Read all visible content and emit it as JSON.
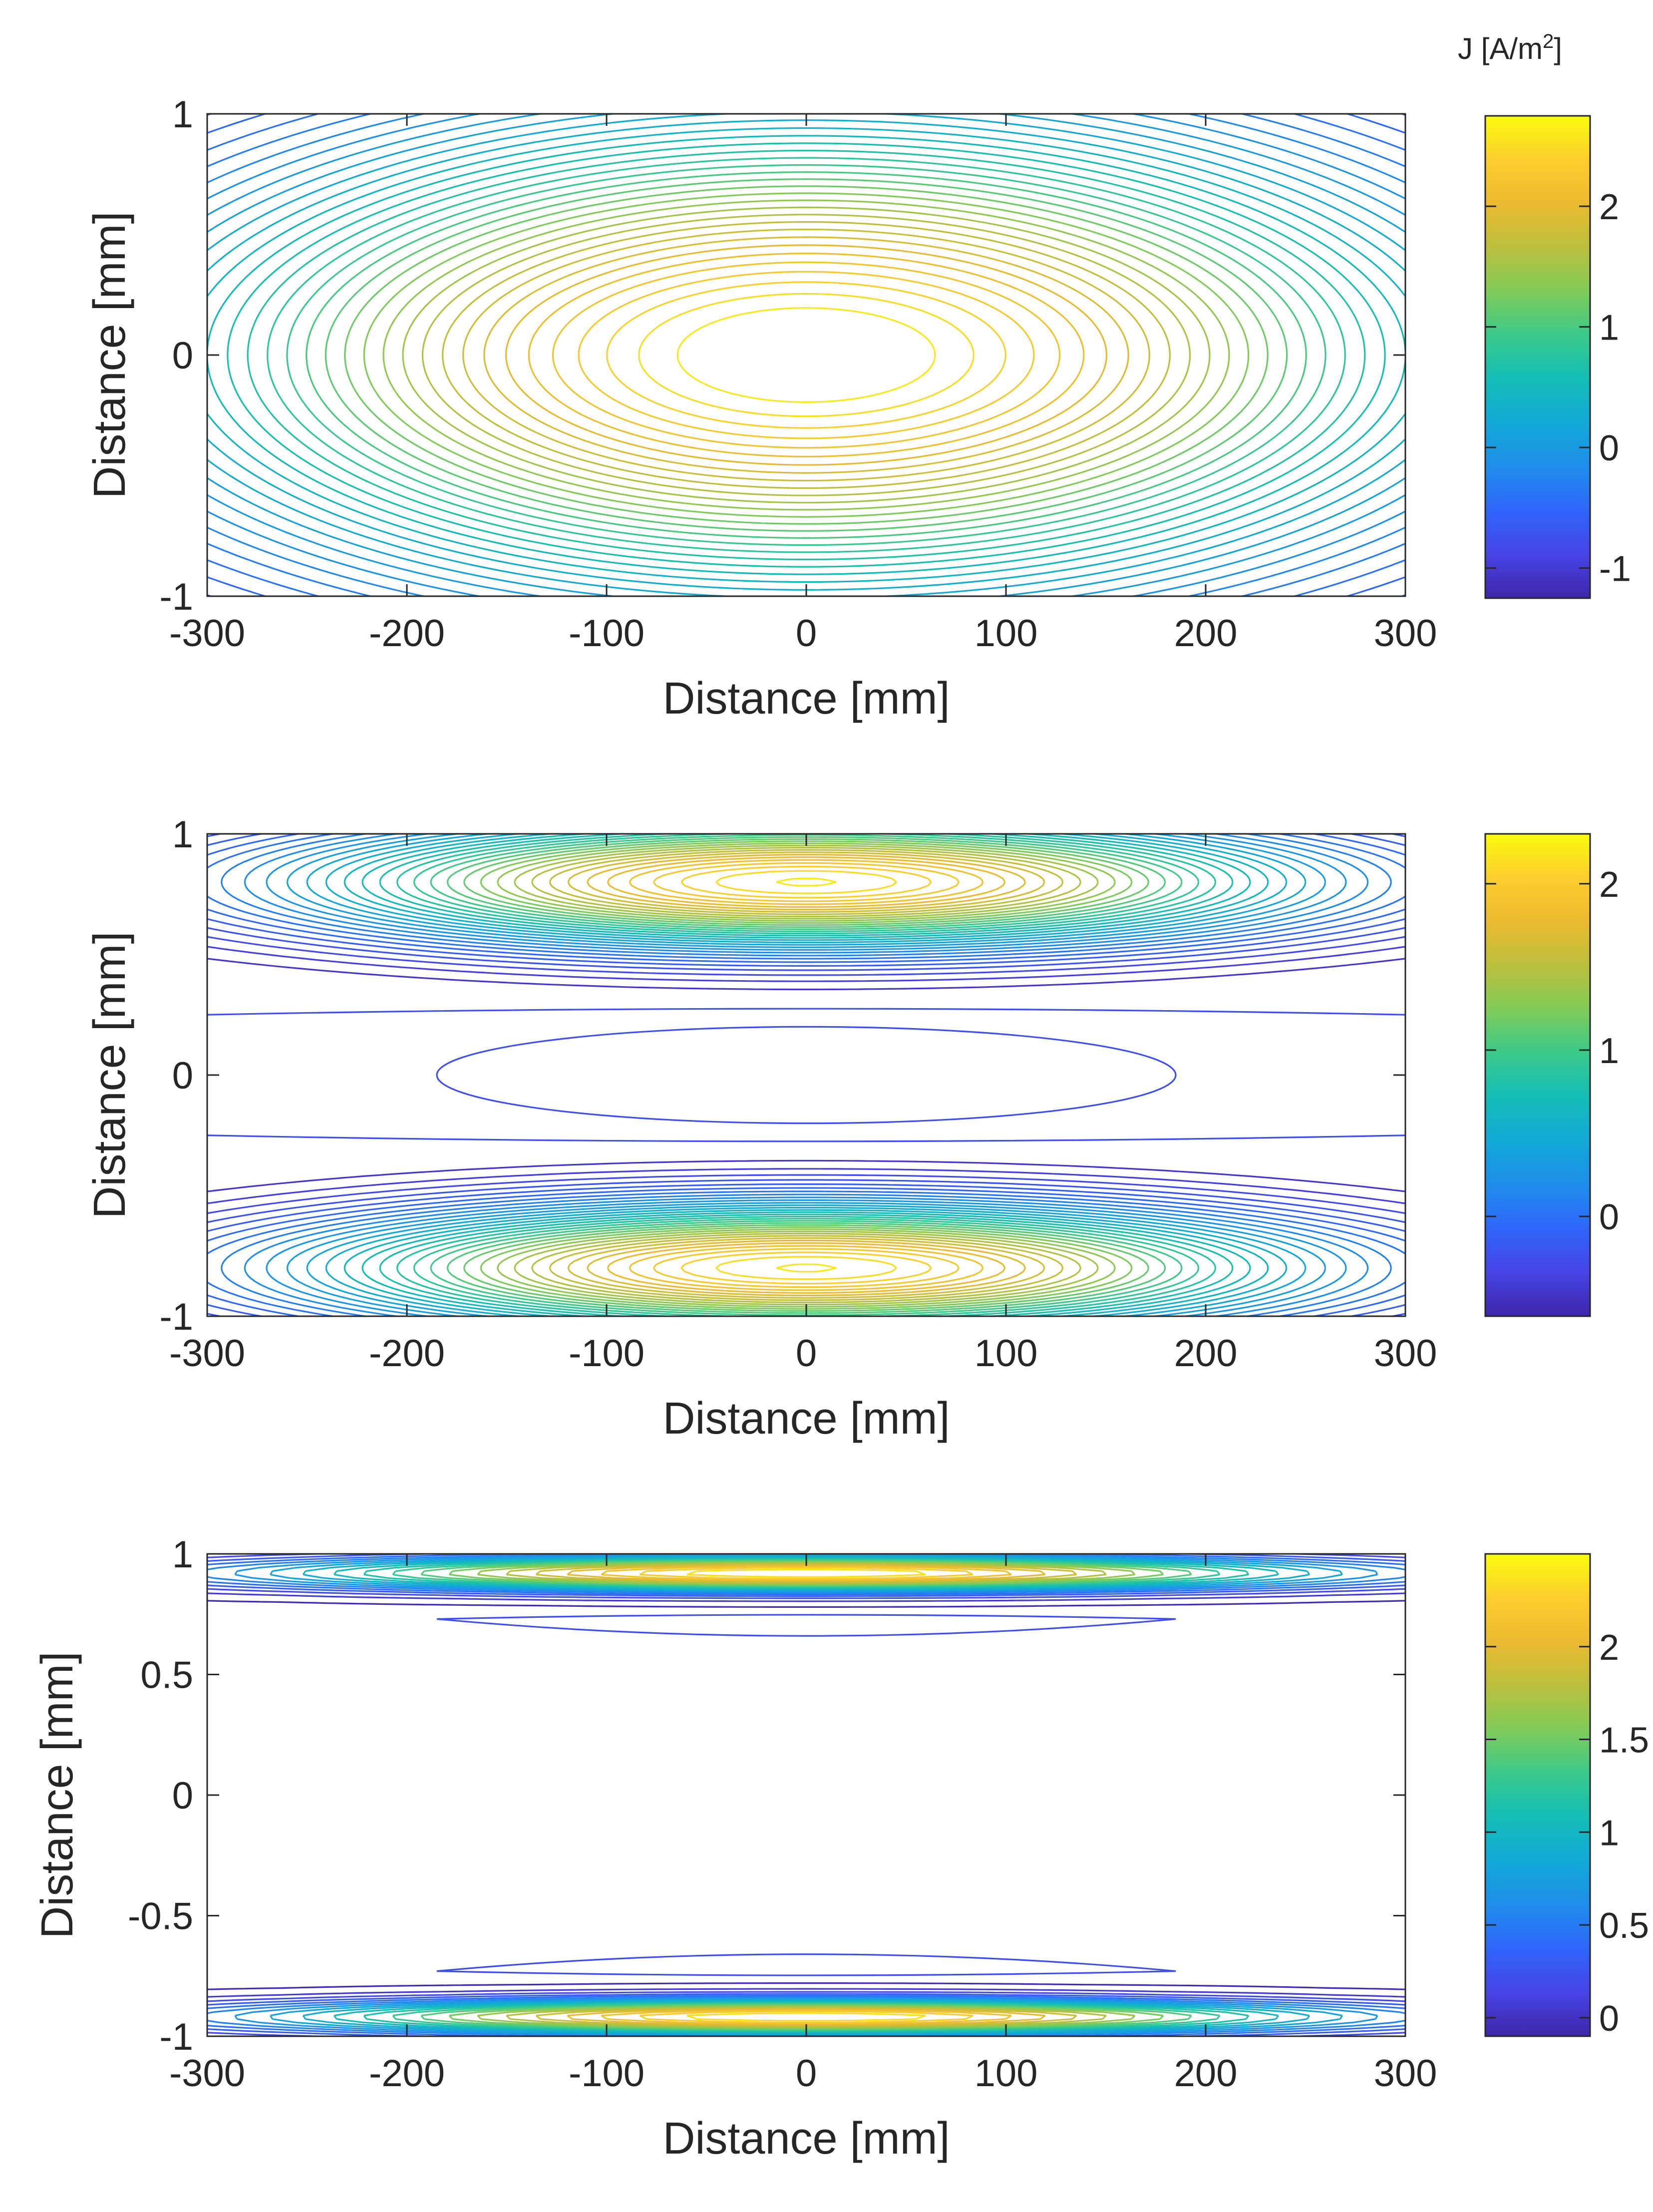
{
  "colorbar_title": {
    "text": "J [A/m",
    "sup": "2",
    "close": "]"
  },
  "colors": {
    "parula": [
      "#3E26A8",
      "#4743E7",
      "#2F65FA",
      "#1E8EEA",
      "#12A9D6",
      "#14BDB6",
      "#3BC98A",
      "#80CB58",
      "#BCBF3D",
      "#EBBA30",
      "#FCCE2D",
      "#F9FB0E"
    ],
    "axis": "#262626",
    "background": "#ffffff"
  },
  "chart_data": [
    {
      "type": "contour",
      "panel": "top",
      "title": "",
      "xlabel": "Distance [mm]",
      "ylabel": "Distance [mm]",
      "xlim": [
        -300,
        300
      ],
      "ylim": [
        -1,
        1
      ],
      "xticks": [
        -300,
        -200,
        -100,
        0,
        100,
        200,
        300
      ],
      "xticklabels": [
        "-300",
        "-200",
        "-100",
        "0",
        "100",
        "200",
        "300"
      ],
      "yticks": [
        -1,
        0,
        1
      ],
      "yticklabels": [
        "-1",
        "0",
        "1"
      ],
      "clim": [
        -1.25,
        2.75
      ],
      "cbticks": [
        -1,
        0,
        1,
        2
      ],
      "cbticklabels": [
        "-1",
        "0",
        "1",
        "2"
      ],
      "field": {
        "peaks": [
          {
            "x0": 0,
            "y0": 0,
            "amplitude": 4.0,
            "sx": 330,
            "sy": 1.0
          }
        ],
        "offset": -1.25
      },
      "levels": {
        "min": -1.1,
        "max": 2.65,
        "step": 0.1
      }
    },
    {
      "type": "contour",
      "panel": "middle",
      "title": "",
      "xlabel": "Distance [mm]",
      "ylabel": "Distance [mm]",
      "xlim": [
        -300,
        300
      ],
      "ylim": [
        -1,
        1
      ],
      "xticks": [
        -300,
        -200,
        -100,
        0,
        100,
        200,
        300
      ],
      "xticklabels": [
        "-300",
        "-200",
        "-100",
        "0",
        "100",
        "200",
        "300"
      ],
      "yticks": [
        -1,
        0,
        1
      ],
      "yticklabels": [
        "-1",
        "0",
        "1"
      ],
      "clim": [
        -0.6,
        2.3
      ],
      "cbticks": [
        0,
        1,
        2
      ],
      "cbticklabels": [
        "0",
        "1",
        "2"
      ],
      "field": {
        "peaks": [
          {
            "x0": 0,
            "y0": 0.8,
            "amplitude": 2.8,
            "sx": 250,
            "sy": 0.26
          },
          {
            "x0": 0,
            "y0": -0.8,
            "amplitude": 2.8,
            "sx": 250,
            "sy": 0.26
          }
        ],
        "offset": -0.6,
        "central_ellipse": {
          "rx": 185,
          "ry": 0.2
        },
        "boundary_lines_y": [
          0.25,
          -0.25
        ]
      },
      "levels": {
        "min": -0.45,
        "max": 2.25,
        "step": 0.08
      }
    },
    {
      "type": "contour",
      "panel": "bottom",
      "title": "",
      "xlabel": "Distance [mm]",
      "ylabel": "Distance [mm]",
      "xlim": [
        -300,
        300
      ],
      "ylim": [
        -1,
        1
      ],
      "xticks": [
        -300,
        -200,
        -100,
        0,
        100,
        200,
        300
      ],
      "xticklabels": [
        "-300",
        "-200",
        "-100",
        "0",
        "100",
        "200",
        "300"
      ],
      "yticks": [
        -1,
        -0.5,
        0,
        0.5,
        1
      ],
      "yticklabels": [
        "-1",
        "-0.5",
        "0",
        "0.5",
        "1"
      ],
      "clim": [
        -0.1,
        2.5
      ],
      "cbticks": [
        0,
        0.5,
        1,
        1.5,
        2
      ],
      "cbticklabels": [
        "0",
        "0.5",
        "1",
        "1.5",
        "2"
      ],
      "field": {
        "peaks": [
          {
            "x0": 0,
            "y0": 0.92,
            "amplitude": 2.6,
            "sx": 260,
            "sy": 0.07
          },
          {
            "x0": 0,
            "y0": -0.92,
            "amplitude": 2.6,
            "sx": 260,
            "sy": 0.07
          }
        ],
        "offset": -0.1,
        "lens": [
          {
            "y_base": 0.73,
            "y_peak": 0.66,
            "x_half": 185
          },
          {
            "y_base": -0.73,
            "y_peak": -0.66,
            "x_half": 185
          }
        ]
      },
      "levels": {
        "min": -0.05,
        "max": 2.45,
        "step": 0.12
      }
    }
  ]
}
